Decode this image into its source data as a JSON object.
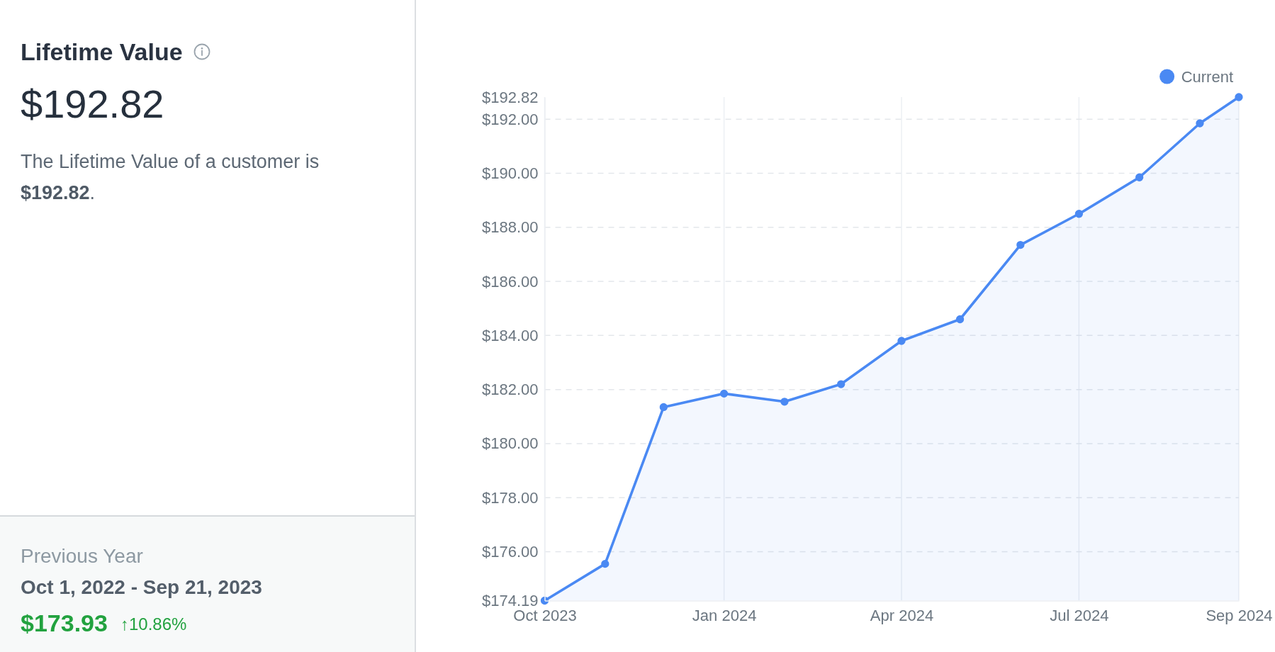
{
  "chart_data": [
    {
      "type": "other",
      "title": "Lifetime Value",
      "annotations": [
        "$192.82",
        "The Lifetime Value of a customer is $192.82.",
        "Previous Year",
        "Oct 1, 2022 - Sep 21, 2023",
        "$173.93",
        "↑10.86%"
      ]
    },
    {
      "type": "area",
      "x": [
        "2023-10-01",
        "2023-11-01",
        "2023-12-01",
        "2024-01-01",
        "2024-02-01",
        "2024-03-01",
        "2024-04-01",
        "2024-05-01",
        "2024-06-01",
        "2024-07-01",
        "2024-08-01",
        "2024-09-01",
        "2024-09-21"
      ],
      "series": [
        {
          "name": "Current",
          "color": "#4a89f3",
          "values": [
            174.19,
            175.55,
            181.35,
            181.85,
            181.55,
            182.2,
            183.8,
            184.6,
            187.35,
            188.5,
            189.85,
            191.85,
            192.82
          ]
        }
      ],
      "xlim": [
        "2023-10-01",
        "2024-09-21"
      ],
      "xticks": [
        {
          "value": "2023-10-01",
          "label": "Oct 2023"
        },
        {
          "value": "2024-01-01",
          "label": "Jan 2024"
        },
        {
          "value": "2024-04-01",
          "label": "Apr 2024"
        },
        {
          "value": "2024-07-01",
          "label": "Jul 2024"
        },
        {
          "value": "2024-09-21",
          "label": "Sep 2024"
        }
      ],
      "ylim": [
        174.19,
        192.82
      ],
      "yticks": [
        {
          "value": 174.19,
          "label": "$174.19"
        },
        {
          "value": 176,
          "label": "$176.00"
        },
        {
          "value": 178,
          "label": "$178.00"
        },
        {
          "value": 180,
          "label": "$180.00"
        },
        {
          "value": 182,
          "label": "$182.00"
        },
        {
          "value": 184,
          "label": "$184.00"
        },
        {
          "value": 186,
          "label": "$186.00"
        },
        {
          "value": 188,
          "label": "$188.00"
        },
        {
          "value": 190,
          "label": "$190.00"
        },
        {
          "value": 192,
          "label": "$192.00"
        },
        {
          "value": 192.82,
          "label": "$192.82"
        }
      ],
      "grid": true,
      "legend": "top right",
      "marker": "circle"
    }
  ]
}
